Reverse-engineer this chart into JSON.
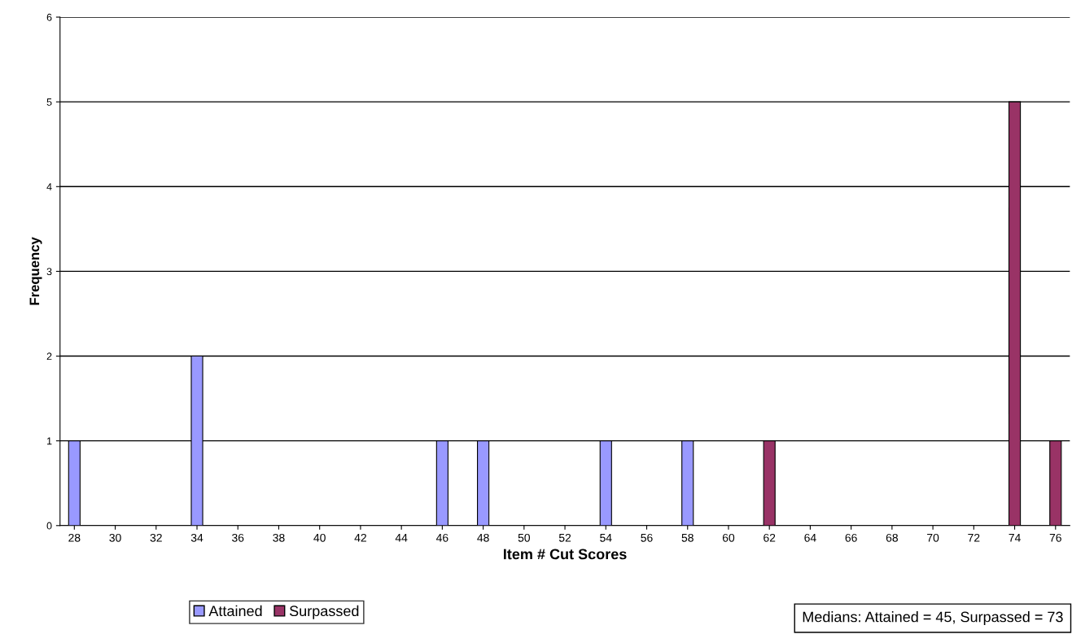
{
  "chart_data": {
    "type": "bar",
    "stacked": true,
    "xlabel": "Item # Cut Scores",
    "ylabel": "Frequency",
    "categories": [
      "28",
      "30",
      "32",
      "34",
      "36",
      "38",
      "40",
      "42",
      "44",
      "46",
      "48",
      "50",
      "52",
      "54",
      "56",
      "58",
      "60",
      "62",
      "64",
      "66",
      "68",
      "70",
      "72",
      "74",
      "76"
    ],
    "series": [
      {
        "name": "Attained",
        "color": "#9999ff",
        "values": [
          1,
          0,
          0,
          2,
          0,
          0,
          0,
          0,
          0,
          1,
          1,
          0,
          0,
          1,
          0,
          1,
          0,
          0,
          0,
          0,
          0,
          0,
          0,
          0,
          0
        ]
      },
      {
        "name": "Surpassed",
        "color": "#993366",
        "values": [
          0,
          0,
          0,
          0,
          0,
          0,
          0,
          0,
          0,
          0,
          0,
          0,
          0,
          0,
          0,
          0,
          0,
          1,
          0,
          0,
          0,
          0,
          0,
          5,
          1
        ]
      }
    ],
    "ylim": [
      0,
      6
    ],
    "yticks": [
      0,
      1,
      2,
      3,
      4,
      5,
      6
    ],
    "grid": "y",
    "legend": "bottom left",
    "annotations": [
      "Medians: Attained = 45, Surpassed = 73"
    ]
  }
}
